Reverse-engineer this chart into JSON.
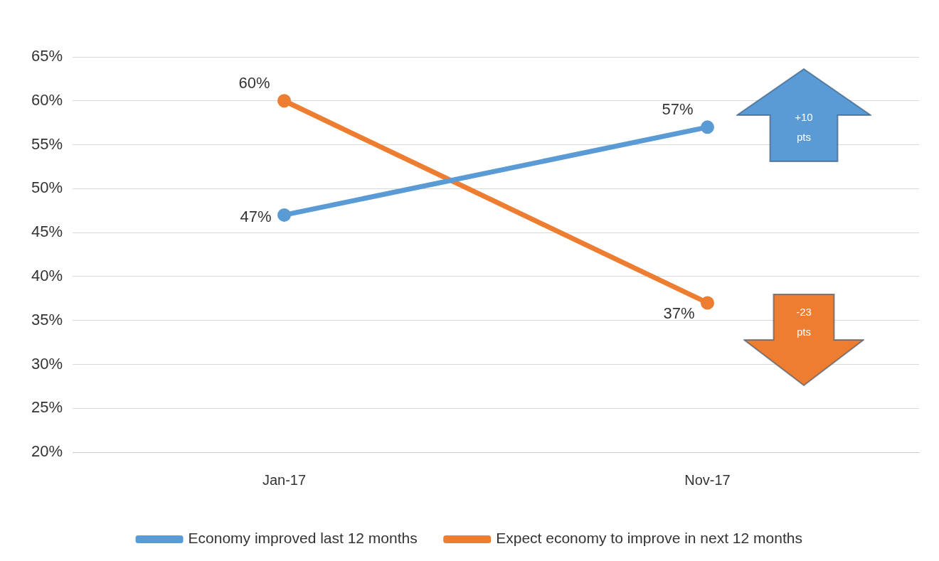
{
  "chart_data": {
    "type": "line",
    "categories": [
      "Jan-17",
      "Nov-17"
    ],
    "series": [
      {
        "name": "Economy improved last 12 months",
        "color": "#5b9bd5",
        "values": [
          47,
          57
        ],
        "value_labels": [
          "47%",
          "57%"
        ]
      },
      {
        "name": "Expect economy to improve in next 12 months",
        "color": "#ed7d31",
        "values": [
          60,
          37
        ],
        "value_labels": [
          "60%",
          "37%"
        ]
      }
    ],
    "ylim": [
      20,
      65
    ],
    "yticks": [
      {
        "value": 20,
        "label": "20%"
      },
      {
        "value": 25,
        "label": "25%"
      },
      {
        "value": 30,
        "label": "30%"
      },
      {
        "value": 35,
        "label": "35%"
      },
      {
        "value": 40,
        "label": "40%"
      },
      {
        "value": 45,
        "label": "45%"
      },
      {
        "value": 50,
        "label": "50%"
      },
      {
        "value": 55,
        "label": "55%"
      },
      {
        "value": 60,
        "label": "60%"
      },
      {
        "value": 65,
        "label": "65%"
      }
    ],
    "annotations": [
      "+10 pts",
      "-23 pts"
    ],
    "grid": "y",
    "legend": "bottom",
    "marker": "circle",
    "line_style": "solid"
  }
}
